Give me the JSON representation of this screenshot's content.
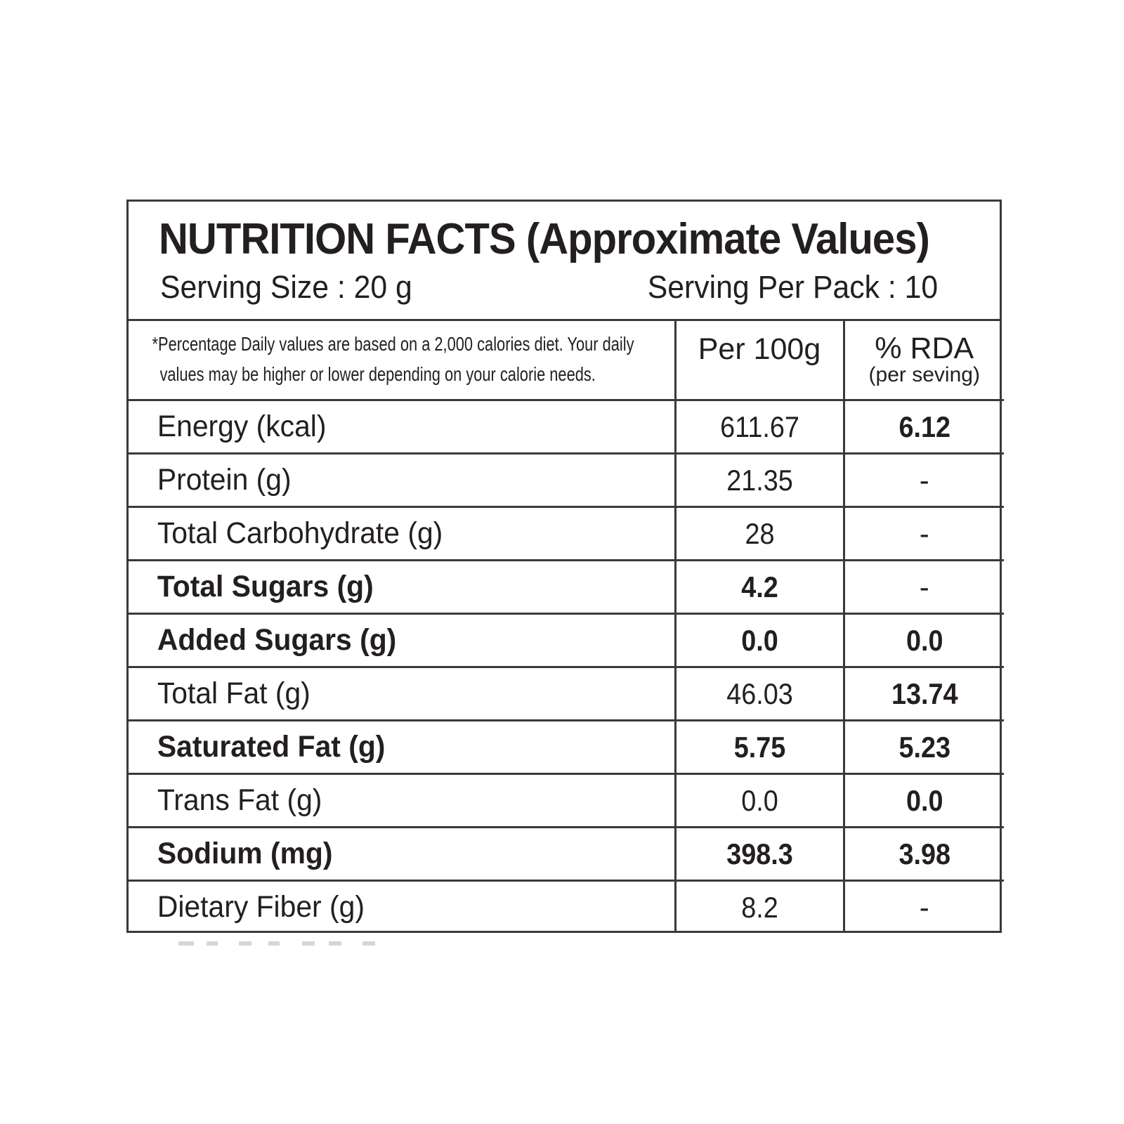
{
  "title": "NUTRITION FACTS (Approximate Values)",
  "serving_size": "Serving Size : 20 g",
  "serving_per_pack": "Serving Per Pack : 10",
  "note_line1": "*Percentage Daily values are based on a 2,000 calories diet. Your daily",
  "note_line2": "values may be higher or lower depending on your calorie needs.",
  "col_per100": "Per 100g",
  "col_rda": "% RDA",
  "col_rda_sub": "(per seving)",
  "rows": [
    {
      "name": "Energy (kcal)",
      "per100": "611.67",
      "rda": "6.12"
    },
    {
      "name": "Protein (g)",
      "per100": "21.35",
      "rda": "-"
    },
    {
      "name": "Total Carbohydrate (g)",
      "per100": "28",
      "rda": "-"
    },
    {
      "name": "Total Sugars (g)",
      "per100": "4.2",
      "rda": "-"
    },
    {
      "name": "Added Sugars (g)",
      "per100": "0.0",
      "rda": "0.0"
    },
    {
      "name": "Total Fat (g)",
      "per100": "46.03",
      "rda": "13.74"
    },
    {
      "name": "Saturated Fat (g)",
      "per100": "5.75",
      "rda": "5.23"
    },
    {
      "name": "Trans Fat (g)",
      "per100": "0.0",
      "rda": "0.0"
    },
    {
      "name": "Sodium (mg)",
      "per100": "398.3",
      "rda": "3.98"
    },
    {
      "name": "Dietary Fiber (g)",
      "per100": "8.2",
      "rda": "-"
    }
  ]
}
